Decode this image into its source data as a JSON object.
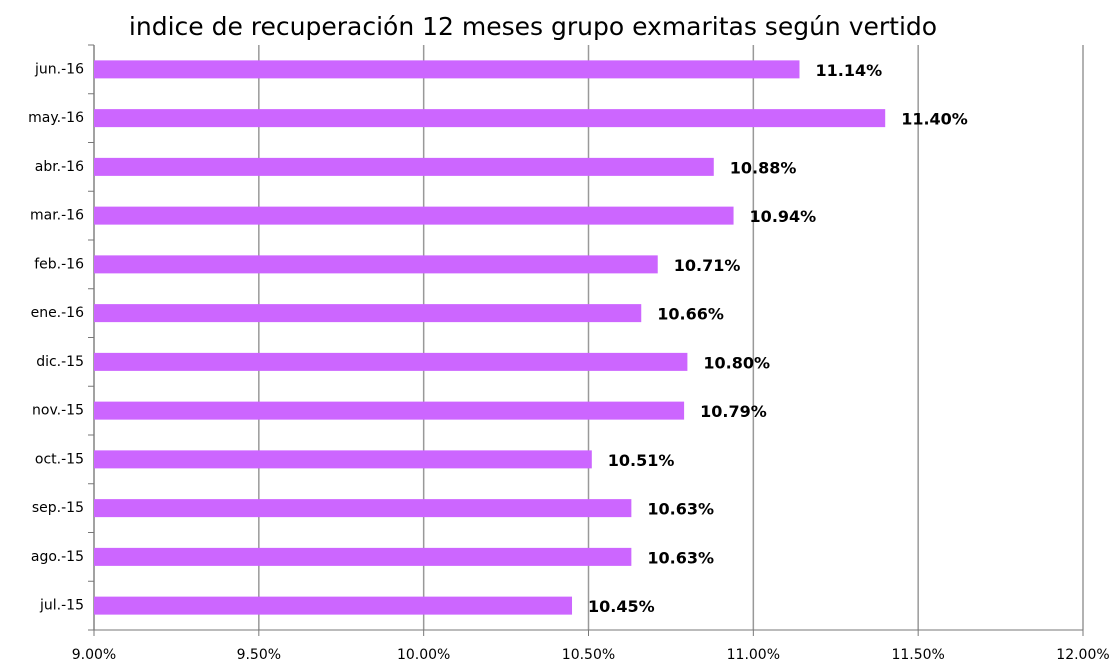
{
  "chart_data": {
    "type": "bar",
    "orientation": "horizontal",
    "title": "indice de recuperación 12 meses grupo exmaritas según vertido",
    "categories": [
      "jun.-16",
      "may.-16",
      "abr.-16",
      "mar.-16",
      "feb.-16",
      "ene.-16",
      "dic.-15",
      "nov.-15",
      "oct.-15",
      "sep.-15",
      "ago.-15",
      "jul.-15"
    ],
    "values": [
      11.14,
      11.4,
      10.88,
      10.94,
      10.71,
      10.66,
      10.8,
      10.79,
      10.51,
      10.63,
      10.63,
      10.45
    ],
    "value_labels": [
      "11.14%",
      "11.40%",
      "10.88%",
      "10.94%",
      "10.71%",
      "10.66%",
      "10.80%",
      "10.79%",
      "10.51%",
      "10.63%",
      "10.63%",
      "10.45%"
    ],
    "color": "#cc66ff",
    "xlim": [
      9,
      12
    ],
    "xticks": [
      {
        "value": 9,
        "label": "9.00%"
      },
      {
        "value": 9.5,
        "label": "9.50%"
      },
      {
        "value": 10,
        "label": "10.00%"
      },
      {
        "value": 10.5,
        "label": "10.50%"
      },
      {
        "value": 11,
        "label": "11.00%"
      },
      {
        "value": 11.5,
        "label": "11.50%"
      },
      {
        "value": 12,
        "label": "12.00%"
      }
    ],
    "grid": true
  }
}
